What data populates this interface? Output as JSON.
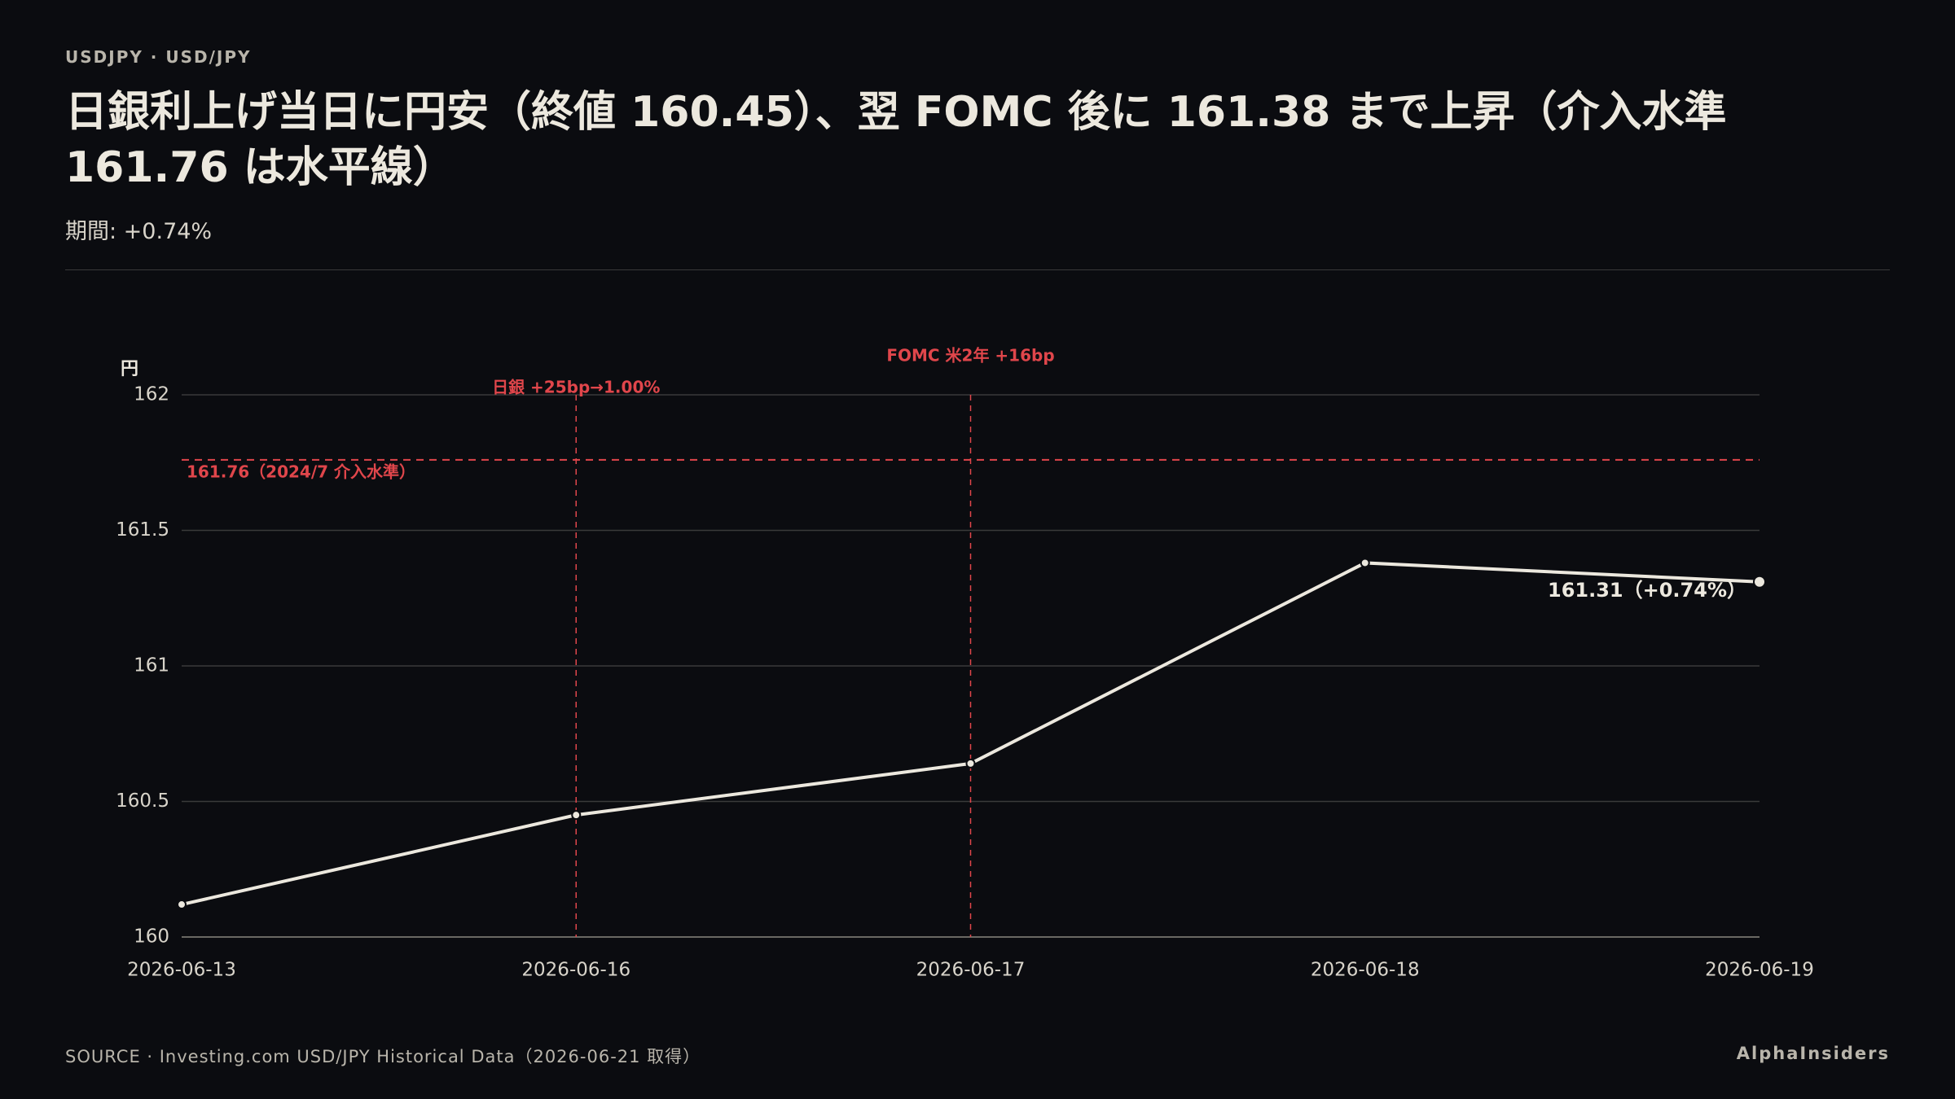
{
  "header": {
    "eyebrow": "USDJPY · USD/JPY",
    "title": "日銀利上げ当日に円安（終値 160.45）、翌 FOMC 後に 161.38 まで上昇（介入水準 161.76 は水平線）",
    "subtitle": "期間: +0.74%"
  },
  "chart_data": {
    "type": "line",
    "y_label": "円",
    "categories": [
      "2026-06-13",
      "2026-06-16",
      "2026-06-17",
      "2026-06-18",
      "2026-06-19"
    ],
    "values": [
      160.12,
      160.45,
      160.64,
      161.38,
      161.31
    ],
    "value_labels": [
      null,
      null,
      null,
      null,
      "161.31（+0.74%）"
    ],
    "color": "#ece8de",
    "ylim": [
      160,
      162
    ],
    "yticks": [
      160,
      160.5,
      161,
      161.5,
      162
    ],
    "grid": true,
    "reference_lines": [
      {
        "value": 161.76,
        "label": "161.76（2024/7 介入水準）",
        "color": "#e0464b"
      }
    ],
    "events": [
      {
        "x": "2026-06-16",
        "label": "日銀 +25bp→1.00%",
        "color": "#e0464b"
      },
      {
        "x": "2026-06-17",
        "label": "FOMC 米2年 +16bp",
        "color": "#e0464b"
      }
    ]
  },
  "footer": {
    "source": "SOURCE · Investing.com USD/JPY Historical Data（2026-06-21 取得）",
    "brand": "AlphaInsiders"
  }
}
